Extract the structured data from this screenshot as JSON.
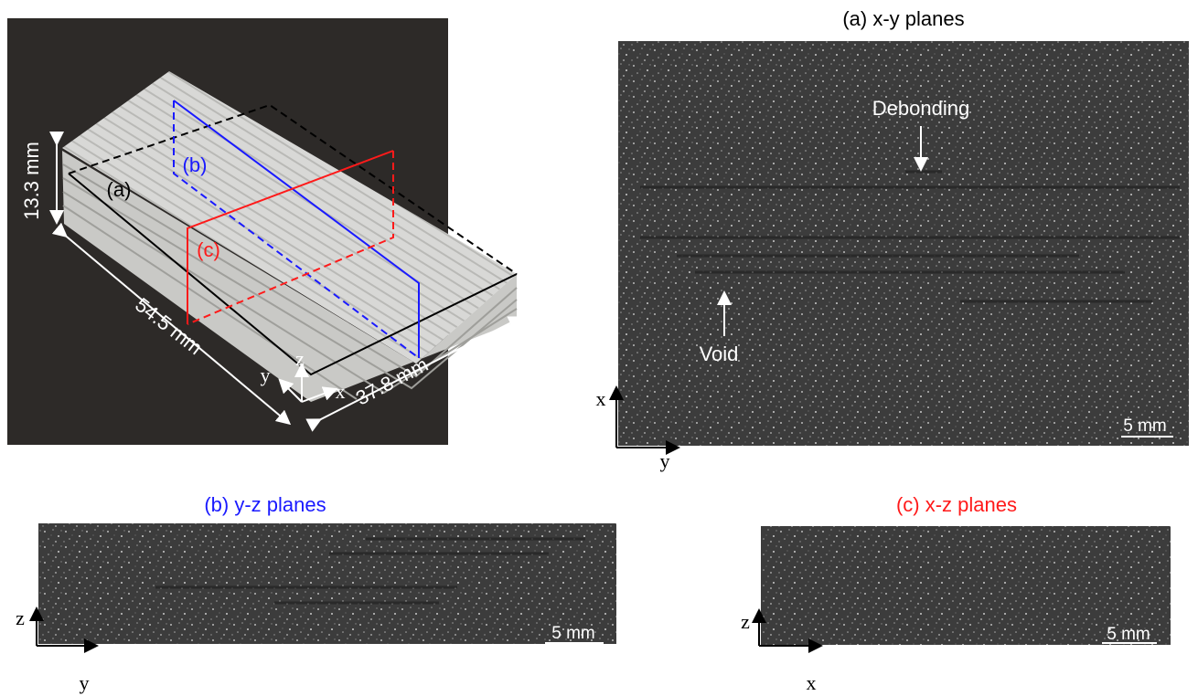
{
  "photo": {
    "height": "13.3 mm",
    "length": "54.5 mm",
    "width": "37.8 mm",
    "plane_a": "(a)",
    "plane_b": "(b)",
    "plane_c": "(c)",
    "axis_x": "x",
    "axis_y": "y",
    "axis_z": "z"
  },
  "panels": [
    {
      "title": "(a) x-y planes",
      "scale_bar": "5 mm",
      "axis_vertical": "x",
      "axis_horizontal": "y",
      "annotations": [
        "Debonding",
        "Void"
      ]
    },
    {
      "title": "(b) y-z planes",
      "scale_bar": "5 mm",
      "axis_vertical": "z",
      "axis_horizontal": "y"
    },
    {
      "title": "(c) x-z planes",
      "scale_bar": "5 mm",
      "axis_vertical": "z",
      "axis_horizontal": "x"
    }
  ]
}
